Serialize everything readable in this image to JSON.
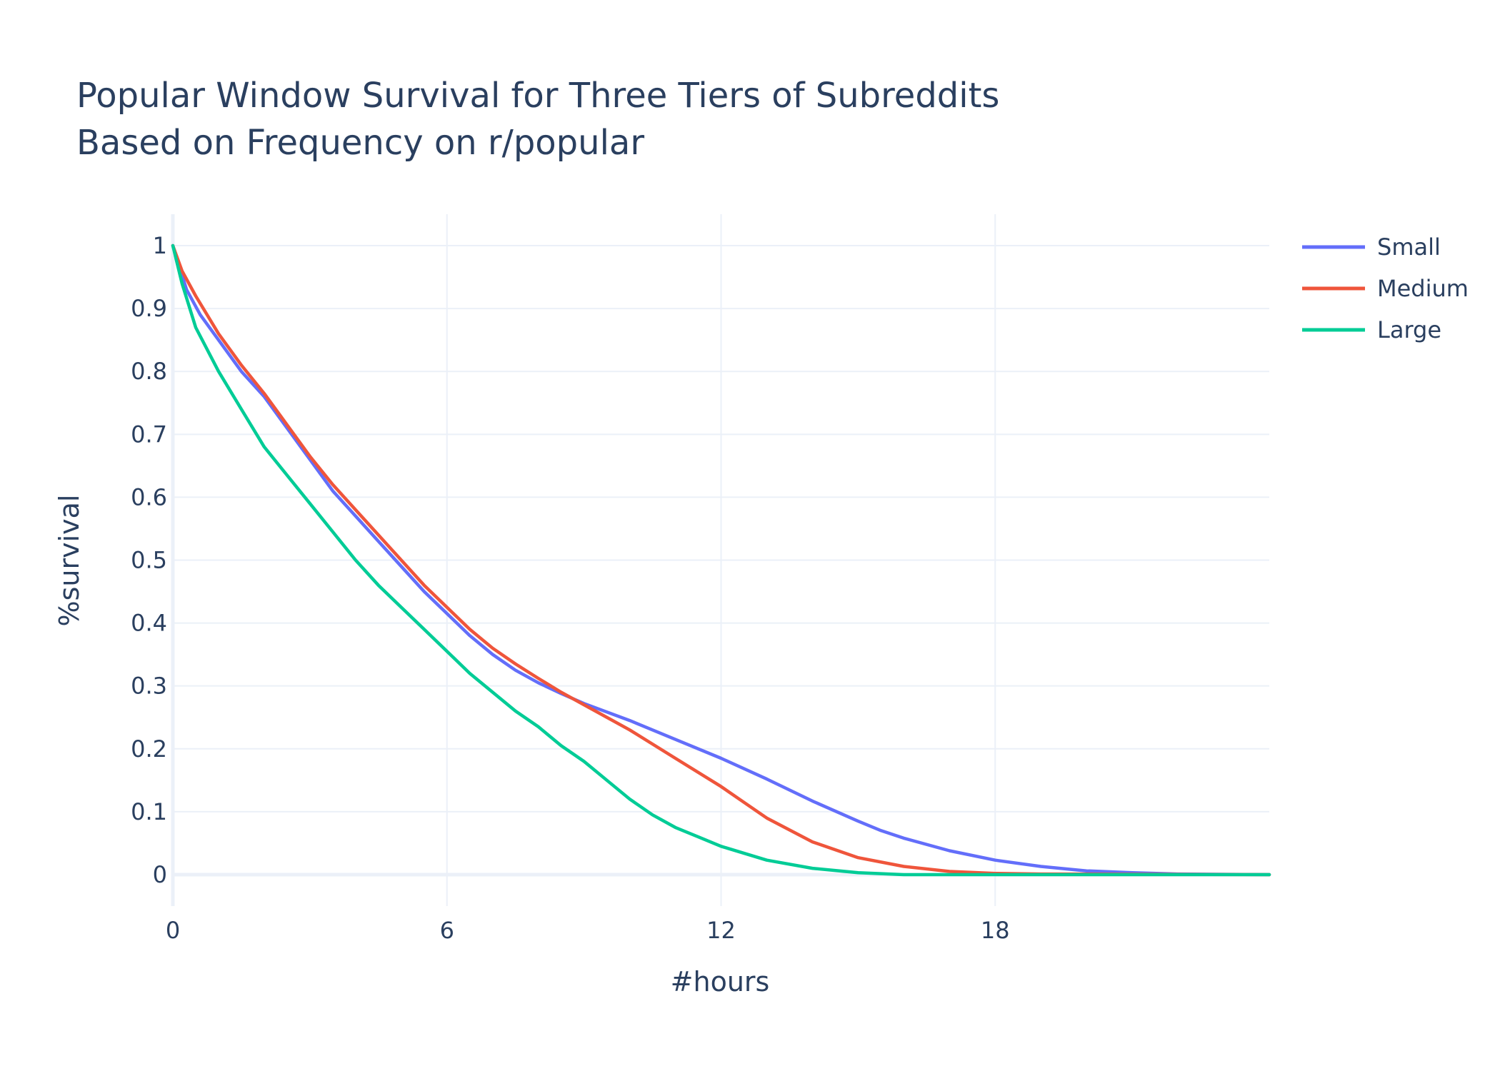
{
  "chart_data": {
    "type": "line",
    "title_lines": [
      "Popular Window Survival for Three Tiers of Subreddits",
      "Based on Frequency on r/popular"
    ],
    "xlabel": "#hours",
    "ylabel": "%survival",
    "xlim": [
      0,
      24
    ],
    "ylim": [
      -0.05,
      1.05
    ],
    "xticks": [
      0,
      6,
      12,
      18
    ],
    "xtick_labels": [
      "0",
      "6",
      "12",
      "18"
    ],
    "yticks": [
      0,
      0.1,
      0.2,
      0.3,
      0.4,
      0.5,
      0.6,
      0.7,
      0.8,
      0.9,
      1
    ],
    "ytick_labels": [
      "0",
      "0.1",
      "0.2",
      "0.3",
      "0.4",
      "0.5",
      "0.6",
      "0.7",
      "0.8",
      "0.9",
      "1"
    ],
    "grid": true,
    "legend_position": "top-right",
    "series": [
      {
        "name": "Small",
        "color": "#636efa",
        "points": [
          [
            0,
            1
          ],
          [
            0.3,
            0.93
          ],
          [
            0.6,
            0.89
          ],
          [
            1,
            0.85
          ],
          [
            1.5,
            0.8
          ],
          [
            2,
            0.76
          ],
          [
            2.5,
            0.71
          ],
          [
            3,
            0.66
          ],
          [
            3.5,
            0.61
          ],
          [
            4,
            0.57
          ],
          [
            4.5,
            0.53
          ],
          [
            5,
            0.49
          ],
          [
            5.5,
            0.45
          ],
          [
            6,
            0.415
          ],
          [
            6.5,
            0.38
          ],
          [
            7,
            0.35
          ],
          [
            7.5,
            0.325
          ],
          [
            8,
            0.305
          ],
          [
            8.5,
            0.288
          ],
          [
            9,
            0.272
          ],
          [
            10,
            0.245
          ],
          [
            11,
            0.215
          ],
          [
            12,
            0.185
          ],
          [
            13,
            0.152
          ],
          [
            14,
            0.117
          ],
          [
            15,
            0.085
          ],
          [
            15.5,
            0.07
          ],
          [
            16,
            0.058
          ],
          [
            17,
            0.038
          ],
          [
            18,
            0.023
          ],
          [
            19,
            0.013
          ],
          [
            20,
            0.006
          ],
          [
            21,
            0.003
          ],
          [
            22,
            0.001
          ],
          [
            24,
            0
          ]
        ]
      },
      {
        "name": "Medium",
        "color": "#ef553b",
        "points": [
          [
            0,
            1
          ],
          [
            0.2,
            0.96
          ],
          [
            0.5,
            0.92
          ],
          [
            1,
            0.86
          ],
          [
            1.5,
            0.81
          ],
          [
            2,
            0.765
          ],
          [
            2.5,
            0.715
          ],
          [
            3,
            0.665
          ],
          [
            3.5,
            0.62
          ],
          [
            4,
            0.58
          ],
          [
            4.5,
            0.54
          ],
          [
            5,
            0.5
          ],
          [
            5.5,
            0.46
          ],
          [
            6,
            0.425
          ],
          [
            6.5,
            0.39
          ],
          [
            7,
            0.36
          ],
          [
            7.5,
            0.335
          ],
          [
            8,
            0.312
          ],
          [
            8.5,
            0.29
          ],
          [
            9,
            0.27
          ],
          [
            10,
            0.23
          ],
          [
            11,
            0.185
          ],
          [
            12,
            0.14
          ],
          [
            12.5,
            0.115
          ],
          [
            13,
            0.09
          ],
          [
            14,
            0.052
          ],
          [
            15,
            0.027
          ],
          [
            16,
            0.013
          ],
          [
            17,
            0.005
          ],
          [
            18,
            0.002
          ],
          [
            19,
            0.001
          ],
          [
            24,
            0
          ]
        ]
      },
      {
        "name": "Large",
        "color": "#00cc96",
        "points": [
          [
            0,
            1
          ],
          [
            0.2,
            0.94
          ],
          [
            0.5,
            0.87
          ],
          [
            1,
            0.8
          ],
          [
            1.5,
            0.74
          ],
          [
            2,
            0.68
          ],
          [
            2.5,
            0.635
          ],
          [
            3,
            0.59
          ],
          [
            3.5,
            0.545
          ],
          [
            4,
            0.5
          ],
          [
            4.5,
            0.46
          ],
          [
            5,
            0.425
          ],
          [
            5.5,
            0.39
          ],
          [
            6,
            0.355
          ],
          [
            6.5,
            0.32
          ],
          [
            7,
            0.29
          ],
          [
            7.5,
            0.26
          ],
          [
            8,
            0.235
          ],
          [
            8.5,
            0.205
          ],
          [
            9,
            0.18
          ],
          [
            9.5,
            0.15
          ],
          [
            10,
            0.12
          ],
          [
            10.5,
            0.095
          ],
          [
            11,
            0.075
          ],
          [
            11.5,
            0.06
          ],
          [
            12,
            0.045
          ],
          [
            13,
            0.023
          ],
          [
            14,
            0.01
          ],
          [
            15,
            0.003
          ],
          [
            16,
            0
          ],
          [
            24,
            0
          ]
        ]
      }
    ]
  }
}
